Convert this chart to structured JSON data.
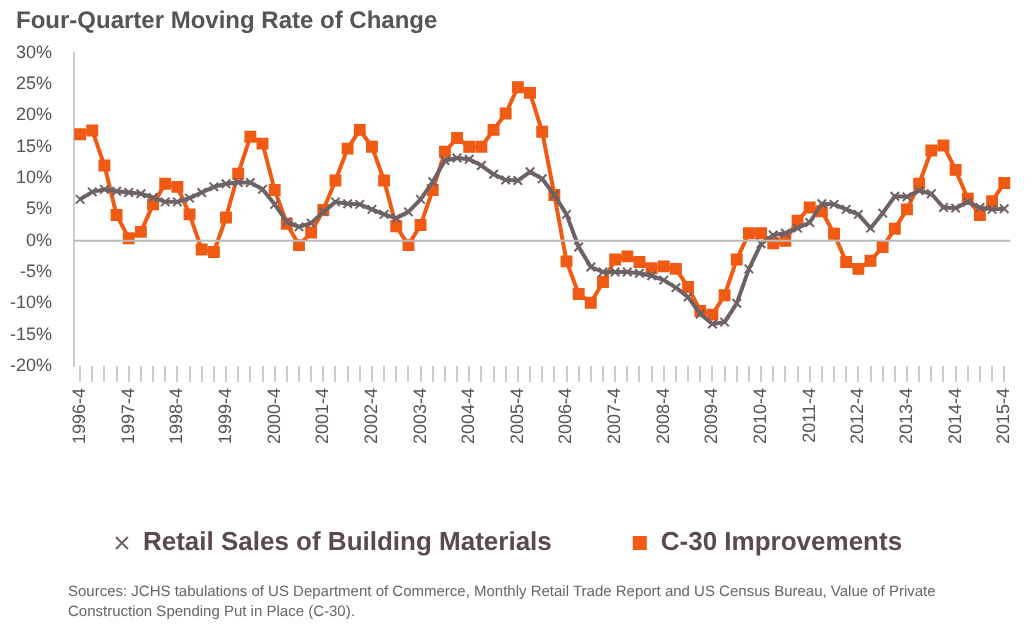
{
  "chart_data": {
    "type": "line",
    "title": "Four-Quarter Moving Rate of Change",
    "categories": [
      "1996-4",
      null,
      null,
      null,
      "1997-4",
      null,
      null,
      null,
      "1998-4",
      null,
      null,
      null,
      "1999-4",
      null,
      null,
      null,
      "2000-4",
      null,
      null,
      null,
      "2001-4",
      null,
      null,
      null,
      "2002-4",
      null,
      null,
      null,
      "2003-4",
      null,
      null,
      null,
      "2004-4",
      null,
      null,
      null,
      "2005-4",
      null,
      null,
      null,
      "2006-4",
      null,
      null,
      null,
      "2007-4",
      null,
      null,
      null,
      "2008-4",
      null,
      null,
      null,
      "2009-4",
      null,
      null,
      null,
      "2010-4",
      null,
      null,
      null,
      "2011-4",
      null,
      null,
      null,
      "2012-4",
      null,
      null,
      null,
      "2013-4",
      null,
      null,
      null,
      "2014-4",
      null,
      null,
      null,
      "2015-4"
    ],
    "series": [
      {
        "name": "Retail Sales of Building Materials",
        "color": "#6d6265",
        "marker": "cross",
        "values": [
          6.6,
          7.8,
          8.2,
          7.9,
          7.7,
          7.5,
          6.9,
          6.2,
          6.2,
          6.8,
          7.7,
          8.6,
          9.1,
          9.3,
          9.3,
          8.2,
          5.8,
          3.0,
          2.2,
          2.8,
          4.6,
          6.2,
          5.9,
          5.8,
          5.0,
          4.2,
          3.6,
          4.6,
          6.6,
          9.4,
          12.8,
          13.2,
          13.0,
          12.0,
          10.6,
          9.7,
          9.6,
          11.0,
          9.9,
          7.3,
          4.2,
          -1.0,
          -4.2,
          -5.0,
          -5.0,
          -5.0,
          -5.2,
          -5.6,
          -6.3,
          -7.5,
          -9.0,
          -11.7,
          -13.3,
          -13.0,
          -10.0,
          -4.5,
          -0.5,
          0.9,
          1.2,
          2.0,
          2.9,
          5.9,
          5.8,
          5.0,
          4.2,
          2.0,
          4.4,
          7.1,
          7.0,
          8.0,
          7.5,
          5.3,
          5.2,
          6.2,
          5.3,
          5.0,
          5.1
        ]
      },
      {
        "name": "C-30 Improvements",
        "color": "#f05a13",
        "marker": "square",
        "values": [
          17.0,
          17.6,
          12.0,
          4.1,
          0.4,
          1.4,
          5.8,
          9.1,
          8.6,
          4.2,
          -1.4,
          -1.8,
          3.7,
          10.7,
          16.6,
          15.5,
          8.1,
          2.7,
          -0.7,
          1.3,
          4.9,
          9.6,
          14.7,
          17.7,
          15.0,
          9.6,
          2.3,
          -0.7,
          2.5,
          8.1,
          14.2,
          16.4,
          15.0,
          15.0,
          17.7,
          20.3,
          24.5,
          23.6,
          17.4,
          7.3,
          -3.3,
          -8.5,
          -9.9,
          -6.6,
          -3.0,
          -2.5,
          -3.4,
          -4.4,
          -4.1,
          -4.5,
          -7.4,
          -11.2,
          -11.8,
          -8.7,
          -3.0,
          1.2,
          1.2,
          -0.4,
          0.0,
          3.2,
          5.3,
          4.7,
          1.1,
          -3.4,
          -4.5,
          -3.2,
          -1.0,
          1.9,
          5.0,
          9.1,
          14.4,
          15.2,
          11.3,
          6.7,
          4.1,
          6.3,
          9.2
        ]
      }
    ],
    "ylim": [
      -20,
      30
    ],
    "yticks": [
      {
        "value": -20,
        "label": "-20%"
      },
      {
        "value": -15,
        "label": "-15%"
      },
      {
        "value": -10,
        "label": "-10%"
      },
      {
        "value": -5,
        "label": "-5%"
      },
      {
        "value": 0,
        "label": "0%"
      },
      {
        "value": 5,
        "label": "5%"
      },
      {
        "value": 10,
        "label": "10%"
      },
      {
        "value": 15,
        "label": "15%"
      },
      {
        "value": 20,
        "label": "20%"
      },
      {
        "value": 25,
        "label": "25%"
      },
      {
        "value": 30,
        "label": "30%"
      }
    ],
    "grid": false,
    "ref_lines": [
      {
        "axis": "y",
        "value": 0,
        "color": "#bbbbbb"
      }
    ],
    "legend": "bottom",
    "annotations": [
      "Sources: JCHS tabulations of US Department of Commerce, Monthly Retail Trade Report and US Census Bureau, Value of Private Construction Spending Put in Place (C-30)."
    ]
  }
}
